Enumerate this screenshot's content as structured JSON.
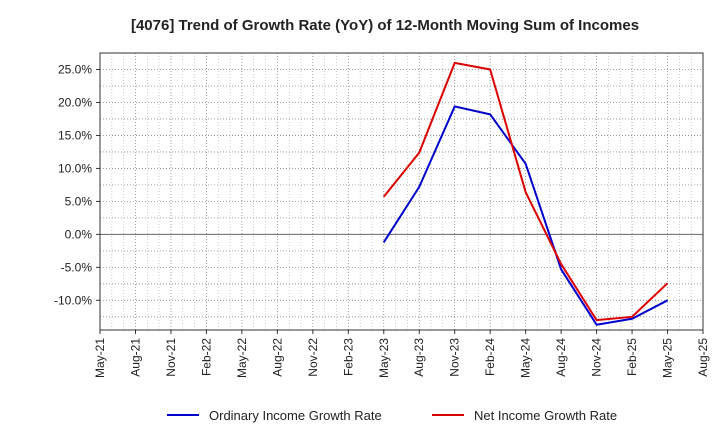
{
  "chart_data": {
    "type": "line",
    "title": "[4076]  Trend of Growth Rate (YoY) of 12-Month Moving Sum of Incomes",
    "categories": [
      "May-21",
      "Aug-21",
      "Nov-21",
      "Feb-22",
      "May-22",
      "Aug-22",
      "Nov-22",
      "Feb-23",
      "May-23",
      "Aug-23",
      "Nov-23",
      "Feb-24",
      "May-24",
      "Aug-24",
      "Nov-24",
      "Feb-25",
      "May-25",
      "Aug-25"
    ],
    "yticks": [
      -10,
      -5,
      0,
      5,
      10,
      15,
      20,
      25
    ],
    "ytick_labels": [
      "-10.0%",
      "-5.0%",
      "0.0%",
      "5.0%",
      "10.0%",
      "15.0%",
      "20.0%",
      "25.0%"
    ],
    "ylim": [
      -14.5,
      27.5
    ],
    "grid": true,
    "legend_position": "bottom",
    "series": [
      {
        "name": "Ordinary Income Growth Rate",
        "color": "#0000cc",
        "values": [
          null,
          null,
          null,
          null,
          null,
          null,
          null,
          null,
          -1.2,
          7.2,
          19.4,
          18.2,
          10.7,
          -5.3,
          -13.7,
          -12.8,
          -10.0,
          null
        ]
      },
      {
        "name": "Net Income Growth Rate",
        "color": "#dd0000",
        "values": [
          null,
          null,
          null,
          null,
          null,
          null,
          null,
          null,
          5.7,
          12.4,
          26.0,
          25.0,
          6.4,
          -4.5,
          -13.0,
          -12.5,
          -7.4,
          null
        ]
      }
    ]
  }
}
